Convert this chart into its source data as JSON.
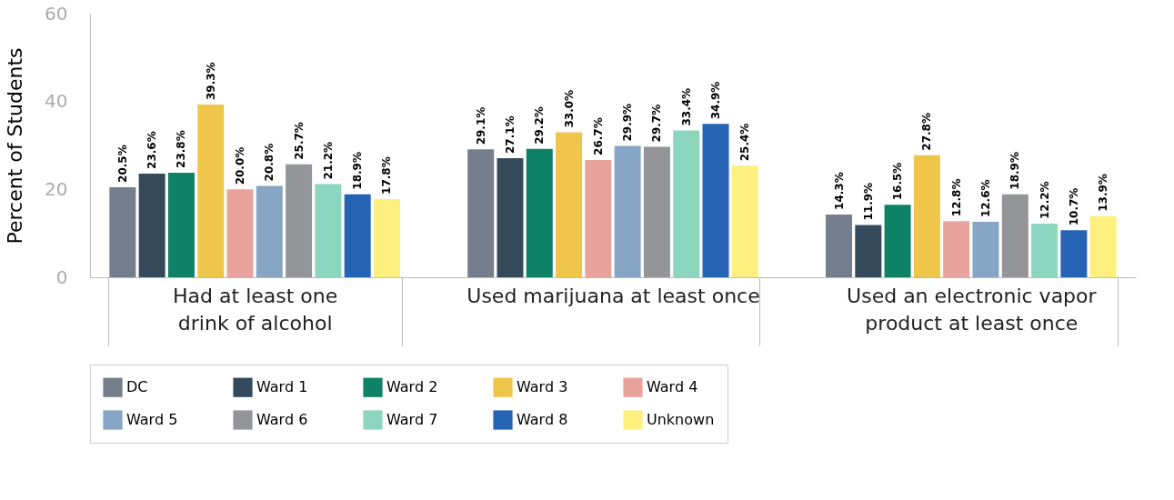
{
  "chart_data": {
    "type": "bar",
    "ylabel": "Percent of Students",
    "categories": [
      "Had at least one\ndrink of alcohol",
      "Used marijuana at least once",
      "Used an electronic vapor\nproduct at least once"
    ],
    "ylim": [
      0,
      60
    ],
    "yticks": [
      0,
      20,
      40,
      60
    ],
    "grid": false,
    "legend": "bottom",
    "series": [
      {
        "name": "DC",
        "color": "#747e8c",
        "values": [
          20.5,
          29.1,
          14.3
        ],
        "value_labels": [
          "20.5%",
          "29.1%",
          "14.3%"
        ]
      },
      {
        "name": "Ward 1",
        "color": "#344a5a",
        "values": [
          23.6,
          27.1,
          11.9
        ],
        "value_labels": [
          "23.6%",
          "27.1%",
          "11.9%"
        ]
      },
      {
        "name": "Ward 2",
        "color": "#0e8266",
        "values": [
          23.8,
          29.2,
          16.5
        ],
        "value_labels": [
          "23.8%",
          "29.2%",
          "16.5%"
        ]
      },
      {
        "name": "Ward 3",
        "color": "#efc64a",
        "values": [
          39.3,
          33.0,
          27.8
        ],
        "value_labels": [
          "39.3%",
          "33.0%",
          "27.8%"
        ]
      },
      {
        "name": "Ward 4",
        "color": "#e8a39c",
        "values": [
          20.0,
          26.7,
          12.8
        ],
        "value_labels": [
          "20.0%",
          "26.7%",
          "12.8%"
        ]
      },
      {
        "name": "Ward 5",
        "color": "#87a6c6",
        "values": [
          20.8,
          29.9,
          12.6
        ],
        "value_labels": [
          "20.8%",
          "29.9%",
          "12.6%"
        ]
      },
      {
        "name": "Ward 6",
        "color": "#939598",
        "values": [
          25.7,
          29.7,
          18.9
        ],
        "value_labels": [
          "25.7%",
          "29.7%",
          "18.9%"
        ]
      },
      {
        "name": "Ward 7",
        "color": "#8cd6bf",
        "values": [
          21.2,
          33.4,
          12.2
        ],
        "value_labels": [
          "21.2%",
          "33.4%",
          "12.2%"
        ]
      },
      {
        "name": "Ward 8",
        "color": "#2563b5",
        "values": [
          18.9,
          34.9,
          10.7
        ],
        "value_labels": [
          "18.9%",
          "34.9%",
          "10.7%"
        ]
      },
      {
        "name": "Unknown",
        "color": "#fdf07e",
        "values": [
          17.8,
          25.4,
          13.9
        ],
        "value_labels": [
          "17.8%",
          "25.4%",
          "13.9%"
        ]
      }
    ]
  }
}
